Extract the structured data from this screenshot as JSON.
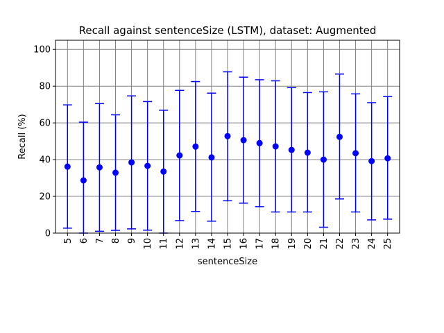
{
  "chart_data": {
    "type": "scatter",
    "title": "Recall against sentenceSize (LSTM), dataset: Augmented",
    "xlabel": "sentenceSize",
    "ylabel": "Recall (%)",
    "categories": [
      "5",
      "6",
      "7",
      "8",
      "9",
      "10",
      "11",
      "12",
      "13",
      "14",
      "15",
      "16",
      "17",
      "18",
      "19",
      "20",
      "21",
      "22",
      "23",
      "24",
      "25"
    ],
    "series": [
      {
        "values": [
          36.2,
          28.7,
          35.8,
          32.9,
          38.5,
          36.6,
          33.5,
          42.3,
          47.1,
          41.2,
          52.8,
          50.6,
          49.0,
          47.2,
          45.3,
          43.8,
          40.0,
          52.4,
          43.5,
          39.2,
          40.7
        ],
        "err_low": [
          2.7,
          0.0,
          1.0,
          1.5,
          2.3,
          1.6,
          0.0,
          6.8,
          11.8,
          6.5,
          17.6,
          16.3,
          14.4,
          11.5,
          11.5,
          11.5,
          3.2,
          18.6,
          11.5,
          7.2,
          7.6
        ],
        "err_high": [
          69.8,
          60.4,
          70.5,
          64.4,
          74.7,
          71.6,
          66.9,
          77.7,
          82.5,
          76.2,
          87.8,
          84.9,
          83.5,
          82.9,
          79.2,
          76.5,
          76.9,
          86.6,
          75.8,
          71.0,
          74.3
        ],
        "color": "#0000ff"
      }
    ],
    "ylim": [
      0,
      105
    ],
    "yticks": [
      0,
      20,
      40,
      60,
      80,
      100
    ],
    "grid": true,
    "legend": "none"
  }
}
